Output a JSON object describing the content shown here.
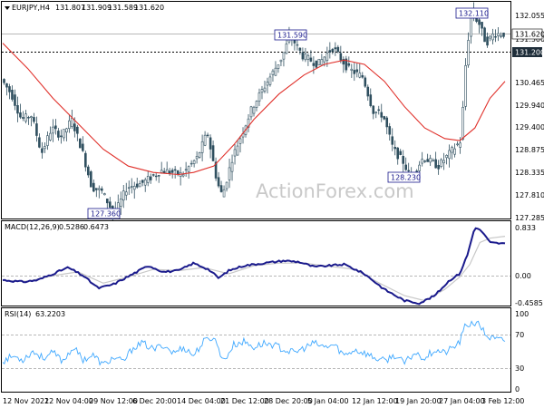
{
  "chart_data": [
    {
      "type": "candlestick",
      "header": {
        "symbol": "EURJPY,H4",
        "ohlc": [
          "131.807",
          "131.909",
          "131.589",
          "131.620"
        ]
      },
      "watermark": "ActionForex.com",
      "y_ticks": [
        "132.055",
        "131.500",
        "130.465",
        "129.940",
        "129.400",
        "128.875",
        "128.335",
        "127.810",
        "127.285"
      ],
      "ylim": [
        127.285,
        132.055
      ],
      "current_price": {
        "label": "131.620",
        "value": 131.62
      },
      "level": {
        "label": "131.200",
        "value": 131.2
      },
      "annotations": [
        {
          "label": "132.110",
          "value": 132.11,
          "index": 0.935
        },
        {
          "label": "131.590",
          "value": 131.59,
          "index": 0.575
        },
        {
          "label": "128.230",
          "value": 128.23,
          "index": 0.815
        },
        {
          "label": "127.360",
          "value": 127.36,
          "index": 0.225
        }
      ],
      "x_ticks": [
        "12 Nov 2021",
        "22 Nov 04:00",
        "29 Nov 12:00",
        "6 Dec 20:00",
        "14 Dec 04:00",
        "21 Dec 12:00",
        "28 Dec 20:00",
        "5 Jan 04:00",
        "12 Jan 12:00",
        "19 Jan 20:00",
        "27 Jan 04:00",
        "3 Feb 12:00"
      ],
      "price_path": [
        [
          0.0,
          130.55
        ],
        [
          0.02,
          130.2
        ],
        [
          0.04,
          129.6
        ],
        [
          0.06,
          129.7
        ],
        [
          0.08,
          128.8
        ],
        [
          0.1,
          129.4
        ],
        [
          0.12,
          129.2
        ],
        [
          0.14,
          129.6
        ],
        [
          0.16,
          128.9
        ],
        [
          0.18,
          128.0
        ],
        [
          0.2,
          127.9
        ],
        [
          0.225,
          127.36
        ],
        [
          0.25,
          128.0
        ],
        [
          0.28,
          128.1
        ],
        [
          0.32,
          128.4
        ],
        [
          0.36,
          128.3
        ],
        [
          0.39,
          128.7
        ],
        [
          0.41,
          129.3
        ],
        [
          0.43,
          128.1
        ],
        [
          0.44,
          127.8
        ],
        [
          0.46,
          128.7
        ],
        [
          0.48,
          129.3
        ],
        [
          0.5,
          129.9
        ],
        [
          0.52,
          130.3
        ],
        [
          0.54,
          130.7
        ],
        [
          0.56,
          131.1
        ],
        [
          0.575,
          131.59
        ],
        [
          0.6,
          131.1
        ],
        [
          0.63,
          130.9
        ],
        [
          0.66,
          131.3
        ],
        [
          0.69,
          130.8
        ],
        [
          0.72,
          130.6
        ],
        [
          0.74,
          129.8
        ],
        [
          0.76,
          129.7
        ],
        [
          0.78,
          128.9
        ],
        [
          0.8,
          128.6
        ],
        [
          0.815,
          128.23
        ],
        [
          0.84,
          128.7
        ],
        [
          0.87,
          128.5
        ],
        [
          0.9,
          128.9
        ],
        [
          0.915,
          129.1
        ],
        [
          0.925,
          131.0
        ],
        [
          0.935,
          132.11
        ],
        [
          0.95,
          131.9
        ],
        [
          0.965,
          131.4
        ],
        [
          0.98,
          131.62
        ],
        [
          1.0,
          131.62
        ]
      ],
      "ma_path": [
        [
          0.0,
          131.4
        ],
        [
          0.05,
          130.8
        ],
        [
          0.1,
          130.1
        ],
        [
          0.15,
          129.5
        ],
        [
          0.2,
          128.9
        ],
        [
          0.25,
          128.5
        ],
        [
          0.3,
          128.35
        ],
        [
          0.35,
          128.3
        ],
        [
          0.38,
          128.35
        ],
        [
          0.42,
          128.5
        ],
        [
          0.46,
          129.0
        ],
        [
          0.5,
          129.6
        ],
        [
          0.55,
          130.2
        ],
        [
          0.6,
          130.65
        ],
        [
          0.64,
          130.9
        ],
        [
          0.68,
          131.0
        ],
        [
          0.72,
          130.9
        ],
        [
          0.76,
          130.5
        ],
        [
          0.8,
          129.9
        ],
        [
          0.84,
          129.4
        ],
        [
          0.88,
          129.15
        ],
        [
          0.91,
          129.1
        ],
        [
          0.94,
          129.4
        ],
        [
          0.97,
          130.1
        ],
        [
          1.0,
          130.5
        ]
      ],
      "series_colors": {
        "candles": "#2f4f5f",
        "ma": "#e0302a"
      }
    },
    {
      "type": "line",
      "header": {
        "name": "MACD(12,26,9)",
        "values": [
          "0.5286",
          "0.6473"
        ]
      },
      "y_ticks": [
        "0.833",
        "0.00",
        "-0.4585"
      ],
      "ylim": [
        -0.4585,
        0.833
      ],
      "macd_path": [
        [
          0.0,
          -0.05
        ],
        [
          0.04,
          -0.08
        ],
        [
          0.07,
          -0.05
        ],
        [
          0.1,
          0.05
        ],
        [
          0.13,
          0.15
        ],
        [
          0.16,
          0.02
        ],
        [
          0.19,
          -0.18
        ],
        [
          0.22,
          -0.12
        ],
        [
          0.26,
          0.05
        ],
        [
          0.29,
          0.18
        ],
        [
          0.32,
          0.08
        ],
        [
          0.35,
          0.1
        ],
        [
          0.38,
          0.22
        ],
        [
          0.41,
          0.12
        ],
        [
          0.43,
          -0.02
        ],
        [
          0.45,
          0.1
        ],
        [
          0.48,
          0.18
        ],
        [
          0.52,
          0.22
        ],
        [
          0.56,
          0.26
        ],
        [
          0.59,
          0.24
        ],
        [
          0.62,
          0.16
        ],
        [
          0.65,
          0.18
        ],
        [
          0.68,
          0.2
        ],
        [
          0.72,
          0.05
        ],
        [
          0.76,
          -0.2
        ],
        [
          0.8,
          -0.38
        ],
        [
          0.83,
          -0.42
        ],
        [
          0.86,
          -0.3
        ],
        [
          0.89,
          -0.05
        ],
        [
          0.91,
          0.05
        ],
        [
          0.925,
          0.35
        ],
        [
          0.94,
          0.8
        ],
        [
          0.955,
          0.72
        ],
        [
          0.97,
          0.55
        ],
        [
          1.0,
          0.53
        ]
      ],
      "signal_path": [
        [
          0.0,
          -0.06
        ],
        [
          0.05,
          -0.07
        ],
        [
          0.1,
          0.02
        ],
        [
          0.15,
          0.08
        ],
        [
          0.2,
          -0.1
        ],
        [
          0.25,
          0.0
        ],
        [
          0.3,
          0.12
        ],
        [
          0.35,
          0.1
        ],
        [
          0.4,
          0.15
        ],
        [
          0.45,
          0.05
        ],
        [
          0.5,
          0.18
        ],
        [
          0.55,
          0.22
        ],
        [
          0.6,
          0.22
        ],
        [
          0.65,
          0.17
        ],
        [
          0.7,
          0.12
        ],
        [
          0.75,
          -0.1
        ],
        [
          0.8,
          -0.3
        ],
        [
          0.84,
          -0.38
        ],
        [
          0.88,
          -0.2
        ],
        [
          0.91,
          0.0
        ],
        [
          0.93,
          0.2
        ],
        [
          0.95,
          0.55
        ],
        [
          0.97,
          0.62
        ],
        [
          1.0,
          0.65
        ]
      ],
      "series_colors": {
        "macd": "#1a1a8c",
        "signal": "#c8c8c8"
      }
    },
    {
      "type": "line",
      "header": {
        "name": "RSI(14)",
        "value": "63.2203"
      },
      "y_ticks": [
        "100",
        "70",
        "50",
        "30",
        "0"
      ],
      "ylim": [
        0,
        100
      ],
      "levels": [
        70,
        30
      ],
      "rsi_path": [
        [
          0.0,
          38
        ],
        [
          0.02,
          44
        ],
        [
          0.04,
          40
        ],
        [
          0.06,
          50
        ],
        [
          0.08,
          42
        ],
        [
          0.1,
          48
        ],
        [
          0.12,
          38
        ],
        [
          0.14,
          55
        ],
        [
          0.16,
          40
        ],
        [
          0.18,
          45
        ],
        [
          0.2,
          33
        ],
        [
          0.22,
          42
        ],
        [
          0.24,
          37
        ],
        [
          0.26,
          55
        ],
        [
          0.28,
          60
        ],
        [
          0.3,
          52
        ],
        [
          0.32,
          58
        ],
        [
          0.34,
          48
        ],
        [
          0.36,
          55
        ],
        [
          0.38,
          45
        ],
        [
          0.4,
          62
        ],
        [
          0.42,
          68
        ],
        [
          0.44,
          38
        ],
        [
          0.46,
          58
        ],
        [
          0.48,
          62
        ],
        [
          0.5,
          55
        ],
        [
          0.52,
          60
        ],
        [
          0.54,
          58
        ],
        [
          0.56,
          52
        ],
        [
          0.58,
          48
        ],
        [
          0.6,
          54
        ],
        [
          0.62,
          60
        ],
        [
          0.64,
          55
        ],
        [
          0.66,
          58
        ],
        [
          0.68,
          45
        ],
        [
          0.7,
          52
        ],
        [
          0.72,
          48
        ],
        [
          0.74,
          42
        ],
        [
          0.76,
          38
        ],
        [
          0.78,
          45
        ],
        [
          0.8,
          35
        ],
        [
          0.82,
          48
        ],
        [
          0.84,
          42
        ],
        [
          0.86,
          52
        ],
        [
          0.88,
          48
        ],
        [
          0.9,
          56
        ],
        [
          0.91,
          62
        ],
        [
          0.92,
          80
        ],
        [
          0.935,
          86
        ],
        [
          0.95,
          82
        ],
        [
          0.965,
          68
        ],
        [
          0.98,
          65
        ],
        [
          1.0,
          63
        ]
      ],
      "series_colors": {
        "rsi": "#3fa8ff"
      }
    }
  ]
}
